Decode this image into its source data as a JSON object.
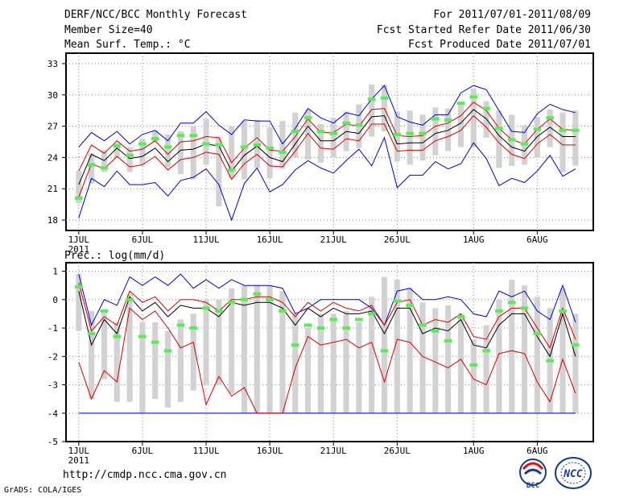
{
  "header": {
    "title": "DERF/NCC/BCC Monthly Forecast",
    "member_size": "Member Size=40",
    "variable": "Mean Surf. Temp.: °C",
    "period": "For 2011/07/01-2011/08/09",
    "started": "Fcst Started Refer Date 2011/06/30",
    "produced": "Fcst Produced Date 2011/07/01"
  },
  "footer": {
    "url": "http://cmdp.ncc.cma.gov.cn",
    "credit": "GrADS: COLA/IGES",
    "logo_bcc": "BCC",
    "logo_ncc": "NCC"
  },
  "colors": {
    "box": "#d2d2d2",
    "median": "#55ee55",
    "ensemble_mean": "#000000",
    "spread": "#dd0000",
    "envelope": "#0000dd"
  },
  "chart_data": [
    {
      "type": "box-plume",
      "title": "Mean Surf. Temp.: °C",
      "x": [
        1,
        2,
        3,
        4,
        5,
        6,
        7,
        8,
        9,
        10,
        11,
        12,
        13,
        14,
        15,
        16,
        17,
        18,
        19,
        20,
        21,
        22,
        23,
        24,
        25,
        26,
        27,
        28,
        29,
        30,
        31,
        32,
        33,
        34,
        35,
        36,
        37,
        38,
        39,
        40
      ],
      "x_ticks": [
        1,
        6,
        11,
        16,
        21,
        26,
        32,
        37
      ],
      "x_tick_labels": [
        "1JUL",
        "6JUL",
        "11JUL",
        "16JUL",
        "21JUL",
        "26JUL",
        "1AUG",
        "6AUG"
      ],
      "x_year_label": "2011",
      "ylim": [
        17,
        34
      ],
      "y_ticks": [
        18,
        21,
        24,
        27,
        30,
        33
      ],
      "series": [
        {
          "name": "box_high",
          "values": [
            22.7,
            24.4,
            24.7,
            25.4,
            25.0,
            25.8,
            26.6,
            26.2,
            26.5,
            27.0,
            27.7,
            26.0,
            27.0,
            27.5,
            27.6,
            26.9,
            27.5,
            28.3,
            28.6,
            27.2,
            27.8,
            28.4,
            29.1,
            31.0,
            31.0,
            28.4,
            28.5,
            28.1,
            28.8,
            28.7,
            29.1,
            30.6,
            29.4,
            28.5,
            28.1,
            27.1,
            27.9,
            28.6,
            28.3,
            28.5
          ]
        },
        {
          "name": "box_low",
          "values": [
            19.6,
            21.5,
            22.6,
            24.0,
            22.6,
            23.3,
            25.5,
            23.1,
            22.4,
            21.9,
            23.3,
            19.3,
            22.0,
            21.9,
            23.0,
            22.0,
            22.9,
            24.0,
            23.8,
            23.5,
            24.0,
            24.6,
            24.9,
            26.0,
            26.5,
            23.6,
            23.3,
            23.7,
            24.2,
            24.6,
            25.0,
            25.0,
            25.9,
            23.0,
            23.2,
            23.3,
            24.0,
            25.0,
            22.6,
            23.2
          ]
        },
        {
          "name": "median",
          "values": [
            20.1,
            23.3,
            23.0,
            25.1,
            24.2,
            25.3,
            25.8,
            25.0,
            26.1,
            26.1,
            25.3,
            25.2,
            22.8,
            25.0,
            25.2,
            24.9,
            24.5,
            26.5,
            27.8,
            26.5,
            26.3,
            27.3,
            27.1,
            29.6,
            29.7,
            26.2,
            26.3,
            26.3,
            27.7,
            27.6,
            29.2,
            29.8,
            28.7,
            26.8,
            25.7,
            25.3,
            26.7,
            27.8,
            26.6,
            26.6
          ]
        },
        {
          "name": "ensemble_mean",
          "values": [
            21.4,
            24.3,
            23.7,
            24.9,
            23.9,
            24.1,
            24.9,
            23.6,
            24.7,
            24.8,
            25.3,
            25.1,
            22.7,
            24.2,
            25.1,
            24.0,
            23.6,
            25.3,
            27.0,
            25.6,
            25.6,
            26.5,
            26.3,
            27.9,
            28.0,
            25.3,
            25.4,
            25.4,
            26.3,
            26.6,
            27.3,
            28.6,
            27.7,
            26.1,
            25.0,
            24.6,
            26.0,
            26.9,
            26.0,
            26.0
          ]
        },
        {
          "name": "mean_plus_sd",
          "values": [
            22.7,
            25.2,
            24.4,
            25.6,
            24.6,
            24.8,
            25.6,
            24.3,
            25.5,
            25.6,
            26.0,
            25.9,
            23.5,
            24.9,
            25.9,
            24.7,
            24.6,
            26.0,
            27.7,
            26.4,
            26.4,
            27.2,
            27.0,
            28.6,
            28.7,
            26.1,
            26.0,
            26.1,
            27.0,
            27.3,
            28.0,
            29.3,
            28.5,
            26.8,
            25.7,
            25.3,
            26.7,
            27.7,
            26.7,
            26.6
          ]
        },
        {
          "name": "mean_minus_sd",
          "values": [
            20.2,
            23.4,
            22.9,
            24.1,
            23.1,
            23.3,
            24.1,
            22.8,
            23.8,
            24.0,
            24.5,
            24.3,
            21.9,
            23.4,
            24.3,
            23.2,
            23.1,
            24.6,
            26.3,
            24.9,
            24.8,
            25.8,
            25.6,
            27.2,
            27.2,
            24.6,
            24.7,
            24.7,
            25.6,
            26.0,
            26.6,
            28.0,
            26.9,
            25.4,
            24.3,
            23.9,
            25.3,
            26.2,
            25.2,
            25.2
          ]
        },
        {
          "name": "ensemble_max",
          "values": [
            25.0,
            26.4,
            25.6,
            26.5,
            25.3,
            26.2,
            26.6,
            25.6,
            27.3,
            27.3,
            28.4,
            27.1,
            26.2,
            27.6,
            27.5,
            27.5,
            25.3,
            26.8,
            28.7,
            27.8,
            27.3,
            28.3,
            28.0,
            29.6,
            30.9,
            27.9,
            27.4,
            27.1,
            28.1,
            28.1,
            30.2,
            30.9,
            30.5,
            28.5,
            26.5,
            26.4,
            28.2,
            29.1,
            28.6,
            28.3
          ]
        },
        {
          "name": "ensemble_min",
          "values": [
            18.2,
            22.0,
            21.2,
            22.7,
            21.4,
            21.4,
            21.6,
            20.3,
            21.8,
            22.1,
            22.9,
            21.4,
            18.0,
            21.5,
            23.0,
            20.7,
            21.4,
            22.8,
            23.7,
            23.0,
            22.5,
            23.7,
            24.8,
            23.2,
            25.9,
            21.1,
            22.3,
            22.3,
            23.6,
            22.9,
            23.4,
            25.4,
            23.9,
            21.3,
            22.0,
            21.6,
            22.7,
            24.2,
            22.2,
            22.9
          ]
        }
      ]
    },
    {
      "type": "box-plume",
      "title": "Prec.: log(mm/d)",
      "x": [
        1,
        2,
        3,
        4,
        5,
        6,
        7,
        8,
        9,
        10,
        11,
        12,
        13,
        14,
        15,
        16,
        17,
        18,
        19,
        20,
        21,
        22,
        23,
        24,
        25,
        26,
        27,
        28,
        29,
        30,
        31,
        32,
        33,
        34,
        35,
        36,
        37,
        38,
        39,
        40
      ],
      "x_ticks": [
        1,
        6,
        11,
        16,
        21,
        26,
        32,
        37
      ],
      "x_tick_labels": [
        "1JUL",
        "6JUL",
        "11JUL",
        "16JUL",
        "21JUL",
        "26JUL",
        "1AUG",
        "6AUG"
      ],
      "x_year_label": "2011",
      "ylim": [
        -5,
        1.3
      ],
      "y_ticks": [
        -5,
        -4,
        -3,
        -2,
        -1,
        0,
        1
      ],
      "series": [
        {
          "name": "box_high",
          "values": [
            0.9,
            -0.4,
            -0.4,
            -0.8,
            0.2,
            -0.8,
            -0.8,
            -1.1,
            -0.7,
            -0.5,
            0.0,
            0.0,
            0.4,
            0.5,
            0.5,
            0.5,
            0.3,
            -0.5,
            -1.0,
            -0.5,
            -0.5,
            -0.4,
            -0.8,
            0.1,
            0.8,
            0.7,
            0.4,
            -0.1,
            -0.3,
            -0.2,
            -0.5,
            -1.4,
            -0.9,
            0.0,
            0.7,
            0.5,
            0.1,
            -0.3,
            0.4,
            -0.5
          ]
        },
        {
          "name": "box_low",
          "values": [
            -1.1,
            -3.5,
            -2.8,
            -3.6,
            -3.6,
            -4.0,
            -3.5,
            -3.8,
            -3.6,
            -3.2,
            -3.0,
            -3.0,
            -3.3,
            -4.0,
            -4.0,
            -4.0,
            -4.0,
            -4.0,
            -4.0,
            -4.0,
            -4.0,
            -4.0,
            -4.0,
            -4.0,
            -4.0,
            -4.0,
            -4.0,
            -4.0,
            -4.0,
            -4.0,
            -4.0,
            -4.0,
            -4.0,
            -4.0,
            -4.0,
            -4.0,
            -4.0,
            -4.0,
            -4.0,
            -4.0
          ]
        },
        {
          "name": "median",
          "values": [
            0.45,
            -1.2,
            -0.4,
            -1.3,
            0.0,
            -1.3,
            -1.5,
            -1.8,
            -0.9,
            -1.0,
            -0.3,
            -0.4,
            -0.1,
            0.0,
            0.2,
            0.0,
            -0.4,
            -1.6,
            -0.9,
            -1.0,
            -0.7,
            -1.0,
            -0.7,
            -0.5,
            -1.8,
            -0.05,
            -0.2,
            -0.9,
            -1.1,
            -1.45,
            -0.6,
            -2.3,
            -1.8,
            -0.4,
            -0.1,
            -0.3,
            -1.2,
            -2.15,
            -0.4,
            -1.6
          ]
        },
        {
          "name": "ensemble_mean",
          "values": [
            0.3,
            -1.6,
            -0.7,
            -1.2,
            0.1,
            -0.4,
            -0.1,
            -0.6,
            -0.2,
            -0.3,
            -0.3,
            -0.6,
            -0.1,
            -0.2,
            -0.1,
            -0.1,
            -0.3,
            -0.9,
            -0.3,
            -0.6,
            -0.3,
            -0.5,
            -0.5,
            -0.4,
            -1.2,
            -0.3,
            -0.3,
            -1.2,
            -1.0,
            -1.1,
            -0.7,
            -1.6,
            -1.7,
            -0.9,
            -0.5,
            -0.5,
            -1.3,
            -2.0,
            -0.5,
            -2.0
          ]
        },
        {
          "name": "mean_plus_sd",
          "values": [
            0.6,
            -1.1,
            -0.6,
            -0.9,
            0.3,
            -0.1,
            0.1,
            -0.4,
            0.0,
            0.0,
            -0.1,
            -0.4,
            0.0,
            0.0,
            0.1,
            0.1,
            -0.1,
            -0.6,
            -0.1,
            -0.4,
            -0.1,
            -0.3,
            -0.4,
            -0.2,
            -0.9,
            -0.1,
            0.0,
            -0.9,
            -0.7,
            -0.8,
            -0.5,
            -1.3,
            -1.4,
            -0.6,
            -0.3,
            -0.3,
            -1.0,
            -1.7,
            -0.3,
            -1.4
          ]
        },
        {
          "name": "mean_minus_sd",
          "values": [
            -2.2,
            -3.5,
            -2.5,
            -2.9,
            -0.3,
            -0.7,
            -0.4,
            -1.0,
            -1.7,
            -1.5,
            -3.7,
            -2.7,
            -3.4,
            -3.1,
            -4.0,
            -4.0,
            -4.0,
            -2.4,
            -1.3,
            -1.6,
            -1.5,
            -1.4,
            -1.7,
            -1.5,
            -2.9,
            -1.4,
            -1.5,
            -2.0,
            -2.2,
            -2.4,
            -2.1,
            -2.8,
            -3.0,
            -1.9,
            -1.8,
            -1.9,
            -2.9,
            -3.6,
            -2.1,
            -3.3
          ]
        },
        {
          "name": "ensemble_max",
          "values": [
            0.9,
            -0.9,
            0.0,
            -0.2,
            0.8,
            0.5,
            0.8,
            0.5,
            0.9,
            0.4,
            0.7,
            0.4,
            0.7,
            0.5,
            0.5,
            0.5,
            0.4,
            -0.5,
            -0.3,
            0.0,
            0.0,
            0.0,
            0.0,
            -0.3,
            -0.9,
            0.3,
            0.4,
            0.0,
            0.0,
            0.1,
            0.0,
            -0.5,
            -0.6,
            0.3,
            0.1,
            0.3,
            -0.4,
            -0.7,
            0.5,
            -0.8
          ]
        },
        {
          "name": "ensemble_min",
          "values": [
            -4.0,
            -4.0,
            -4.0,
            -4.0,
            -4.0,
            -4.0,
            -4.0,
            -4.0,
            -4.0,
            -4.0,
            -4.0,
            -4.0,
            -4.0,
            -4.0,
            -4.0,
            -4.0,
            -4.0,
            -4.0,
            -4.0,
            -4.0,
            -4.0,
            -4.0,
            -4.0,
            -4.0,
            -4.0,
            -4.0,
            -4.0,
            -4.0,
            -4.0,
            -4.0,
            -4.0,
            -4.0,
            -4.0,
            -4.0,
            -4.0,
            -4.0,
            -4.0,
            -4.0,
            -4.0,
            -4.0
          ]
        }
      ]
    }
  ]
}
